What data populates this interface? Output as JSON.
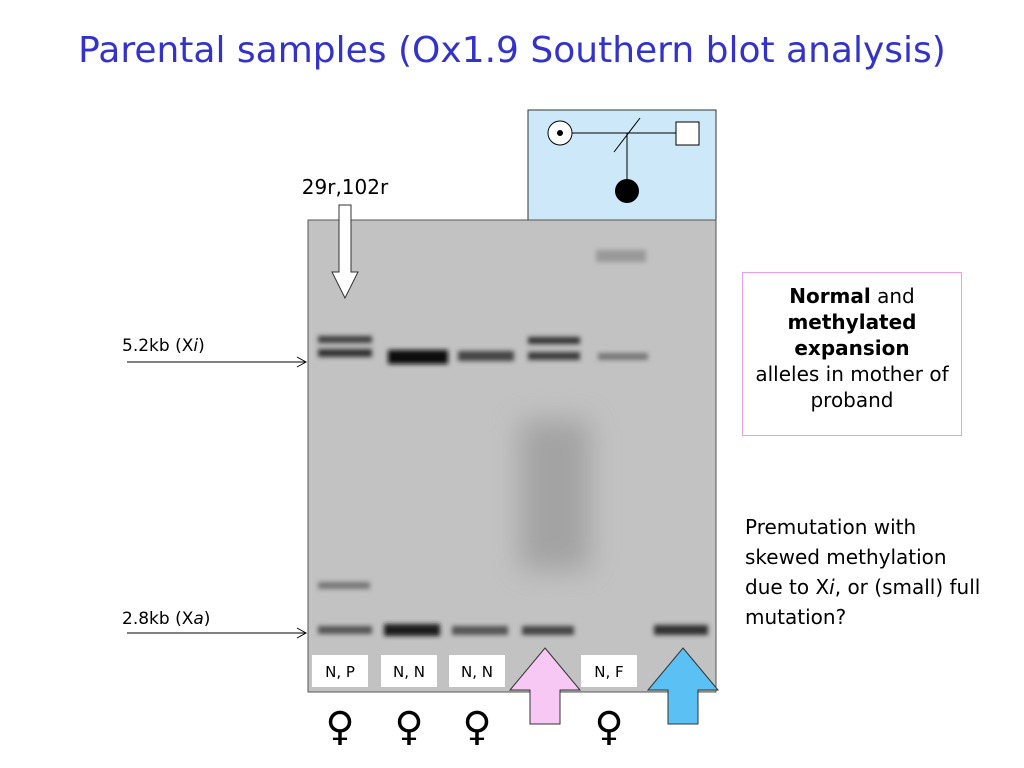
{
  "title": "Parental samples (Ox1.9 Southern blot analysis)",
  "gel": {
    "top_label": "29r,102r",
    "marker_upper": {
      "text": "5.2kb (X",
      "italic": "i",
      "close": ")"
    },
    "marker_lower": {
      "text": "2.8kb (X",
      "italic": "a",
      "close": ")"
    },
    "lanes": [
      {
        "label": "N, P",
        "symbol": "♀"
      },
      {
        "label": "N, N",
        "symbol": "♀"
      },
      {
        "label": "N, N",
        "symbol": "♀"
      },
      {
        "label": "N, F",
        "symbol": "♀"
      }
    ]
  },
  "note_box": {
    "bold1": "Normal",
    "plain1": "and",
    "bold2": "methylated expansion",
    "plain2": "alleles in mother of proband"
  },
  "side_note": {
    "before": "Premutation with skewed methylation due to X",
    "italic": "i",
    "after": ", or (small) full mutation?"
  }
}
